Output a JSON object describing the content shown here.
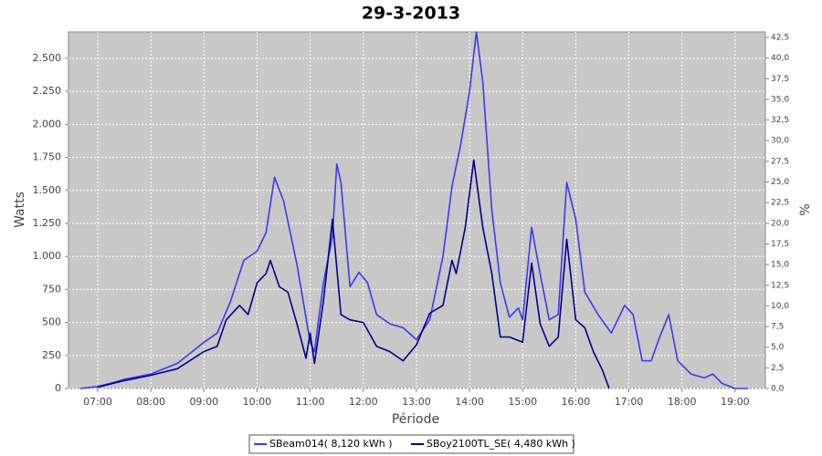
{
  "chart_data": {
    "type": "line",
    "title": "29-3-2013",
    "y_label": "Watts",
    "x_label": "Période",
    "y2_label": "%",
    "grid": true,
    "legend": "bottom",
    "xlim": [
      6.45,
      19.57
    ],
    "xticks": [
      {
        "value": 7,
        "label": "07:00"
      },
      {
        "value": 8,
        "label": "08:00"
      },
      {
        "value": 9,
        "label": "09:00"
      },
      {
        "value": 10,
        "label": "10:00"
      },
      {
        "value": 11,
        "label": "11:00"
      },
      {
        "value": 12,
        "label": "12:00"
      },
      {
        "value": 13,
        "label": "13:00"
      },
      {
        "value": 14,
        "label": "14:00"
      },
      {
        "value": 15,
        "label": "15:00"
      },
      {
        "value": 16,
        "label": "16:00"
      },
      {
        "value": 17,
        "label": "17:00"
      },
      {
        "value": 18,
        "label": "18:00"
      },
      {
        "value": 19,
        "label": "19:00"
      }
    ],
    "ylim": [
      0,
      2700
    ],
    "yticks": [
      0,
      250,
      500,
      750,
      {
        "value": 1000,
        "label": "1.000"
      },
      {
        "value": 1250,
        "label": "1.250"
      },
      {
        "value": 1500,
        "label": "1.500"
      },
      {
        "value": 1750,
        "label": "1.750"
      },
      {
        "value": 2000,
        "label": "2.000"
      },
      {
        "value": 2250,
        "label": "2.250"
      },
      {
        "value": 2500,
        "label": "2.500"
      }
    ],
    "y2lim": [
      0,
      43.16
    ],
    "y2ticks": [
      {
        "value": 0,
        "label": "0,0"
      },
      {
        "value": 2.5,
        "label": "2,5"
      },
      {
        "value": 5,
        "label": "5,0"
      },
      {
        "value": 7.5,
        "label": "7,5"
      },
      {
        "value": 10,
        "label": "10,0"
      },
      {
        "value": 12.5,
        "label": "12,5"
      },
      {
        "value": 15,
        "label": "15,0"
      },
      {
        "value": 17.5,
        "label": "17,5"
      },
      {
        "value": 20,
        "label": "20,0"
      },
      {
        "value": 22.5,
        "label": "22,5"
      },
      {
        "value": 25,
        "label": "25,0"
      },
      {
        "value": 27.5,
        "label": "27,5"
      },
      {
        "value": 30,
        "label": "30,0"
      },
      {
        "value": 32.5,
        "label": "32,5"
      },
      {
        "value": 35,
        "label": "35,0"
      },
      {
        "value": 37.5,
        "label": "37,5"
      },
      {
        "value": 40,
        "label": "40,0"
      },
      {
        "value": 42.5,
        "label": "42,5"
      }
    ],
    "series": [
      {
        "name": "SBeam014( 8,120 kWh )",
        "color": "#3a3af0",
        "x": [
          6.67,
          7,
          7.25,
          7.5,
          8,
          8.5,
          9,
          9.25,
          9.5,
          9.75,
          10,
          10.17,
          10.33,
          10.5,
          10.75,
          11,
          11.08,
          11.25,
          11.42,
          11.5,
          11.58,
          11.75,
          11.92,
          12.08,
          12.25,
          12.5,
          12.75,
          13,
          13.25,
          13.5,
          13.67,
          13.83,
          14,
          14.13,
          14.25,
          14.42,
          14.58,
          14.75,
          14.92,
          15,
          15.17,
          15.33,
          15.5,
          15.67,
          15.83,
          16,
          16.17,
          16.42,
          16.67,
          16.92,
          17.08,
          17.25,
          17.42,
          17.58,
          17.75,
          17.92,
          18.17,
          18.42,
          18.58,
          18.75,
          19,
          19.25
        ],
        "values": [
          0,
          15,
          40,
          70,
          110,
          190,
          350,
          420,
          660,
          970,
          1040,
          1180,
          1600,
          1420,
          940,
          350,
          280,
          800,
          1150,
          1700,
          1560,
          770,
          880,
          800,
          560,
          490,
          460,
          370,
          520,
          1000,
          1530,
          1840,
          2250,
          2700,
          2320,
          1350,
          800,
          540,
          610,
          520,
          1220,
          870,
          520,
          560,
          1560,
          1280,
          730,
          560,
          420,
          630,
          560,
          210,
          210,
          390,
          560,
          210,
          110,
          80,
          110,
          40,
          0,
          0
        ]
      },
      {
        "name": "SBoy2100TL_SE( 4,480 kWh )",
        "color": "#00008c",
        "x": [
          7,
          7.5,
          8,
          8.5,
          9,
          9.25,
          9.42,
          9.67,
          9.83,
          10,
          10.17,
          10.25,
          10.42,
          10.58,
          10.75,
          10.92,
          11,
          11.08,
          11.25,
          11.42,
          11.58,
          11.75,
          12,
          12.25,
          12.5,
          12.75,
          13,
          13.25,
          13.5,
          13.67,
          13.75,
          13.92,
          14.08,
          14.25,
          14.42,
          14.58,
          14.75,
          15,
          15.17,
          15.33,
          15.5,
          15.67,
          15.83,
          16,
          16.17,
          16.33,
          16.5,
          16.63
        ],
        "values": [
          10,
          60,
          100,
          150,
          280,
          320,
          520,
          630,
          560,
          800,
          870,
          970,
          770,
          730,
          490,
          230,
          420,
          190,
          660,
          1280,
          560,
          520,
          500,
          320,
          280,
          210,
          330,
          570,
          630,
          970,
          870,
          1220,
          1730,
          1220,
          870,
          390,
          390,
          350,
          950,
          490,
          320,
          390,
          1130,
          520,
          460,
          280,
          140,
          0
        ]
      }
    ]
  }
}
